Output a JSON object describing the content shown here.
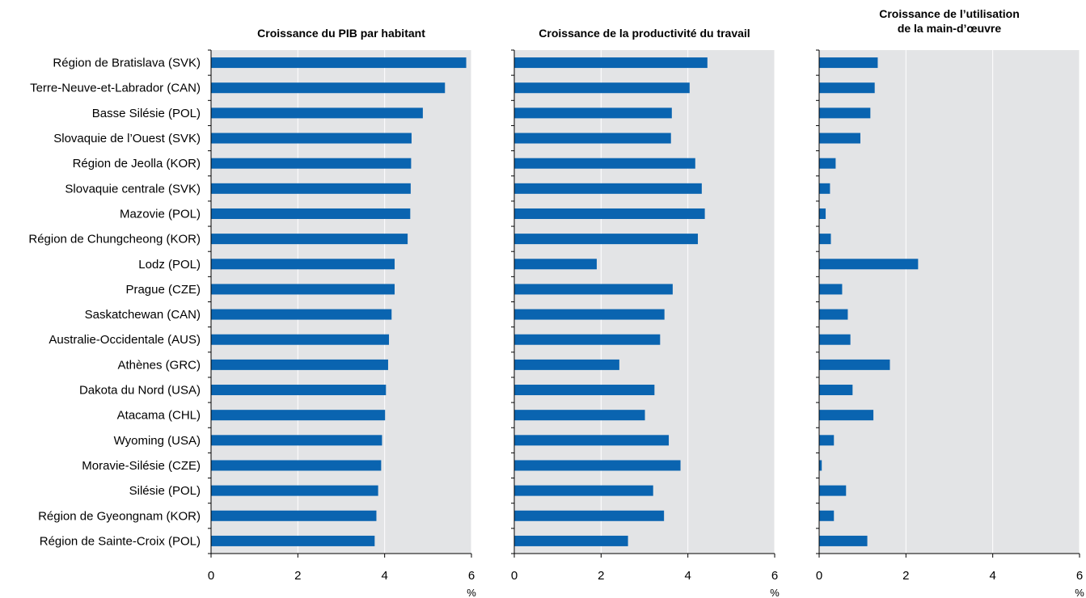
{
  "chart_data": {
    "type": "bar",
    "orientation": "horizontal",
    "categories": [
      "Région de Bratislava (SVK)",
      "Terre-Neuve-et-Labrador (CAN)",
      "Basse Silésie  (POL)",
      "Slovaquie de l’Ouest (SVK)",
      "Région de Jeolla (KOR)",
      "Slovaquie centrale (SVK)",
      "Mazovie (POL)",
      "Région de Chungcheong (KOR)",
      "Lodz (POL)",
      "Prague (CZE)",
      "Saskatchewan (CAN)",
      "Australie-Occidentale (AUS)",
      "Athènes (GRC)",
      "Dakota du Nord (USA)",
      "Atacama (CHL)",
      "Wyoming (USA)",
      "Moravie-Silésie (CZE)",
      "Silésie (POL)",
      "Région de Gyeongnam (KOR)",
      "Région de Sainte-Croix (POL)"
    ],
    "panels": [
      {
        "title_lines": [
          "Croissance du PIB par habitant"
        ],
        "values": [
          5.88,
          5.39,
          4.88,
          4.62,
          4.61,
          4.6,
          4.59,
          4.53,
          4.23,
          4.23,
          4.16,
          4.1,
          4.08,
          4.03,
          4.01,
          3.94,
          3.92,
          3.85,
          3.81,
          3.77
        ],
        "xlim": [
          0,
          6
        ],
        "xticks": [
          "0",
          "2",
          "4",
          "6"
        ],
        "unit": "%"
      },
      {
        "title_lines": [
          "Croissance de la productivité du travail"
        ],
        "values": [
          4.45,
          4.04,
          3.63,
          3.61,
          4.17,
          4.32,
          4.39,
          4.23,
          1.9,
          3.65,
          3.46,
          3.36,
          2.42,
          3.23,
          3.01,
          3.56,
          3.83,
          3.2,
          3.45,
          2.62
        ],
        "xlim": [
          0,
          6
        ],
        "xticks": [
          "0",
          "2",
          "4",
          "6"
        ],
        "unit": "%"
      },
      {
        "title_lines": [
          "Croissance de l’utilisation",
          "de la main-d’œuvre"
        ],
        "values": [
          1.35,
          1.28,
          1.18,
          0.95,
          0.38,
          0.25,
          0.15,
          0.27,
          2.28,
          0.53,
          0.66,
          0.72,
          1.63,
          0.77,
          1.25,
          0.34,
          0.06,
          0.62,
          0.34,
          1.11
        ],
        "xlim": [
          0,
          6
        ],
        "xticks": [
          "0",
          "2",
          "4",
          "6"
        ],
        "unit": "%"
      }
    ],
    "grid": true,
    "colors": {
      "bar": "#0a64b0",
      "plot_bg": "#e3e4e6",
      "grid": "#ffffff",
      "axis": "#000000"
    }
  }
}
